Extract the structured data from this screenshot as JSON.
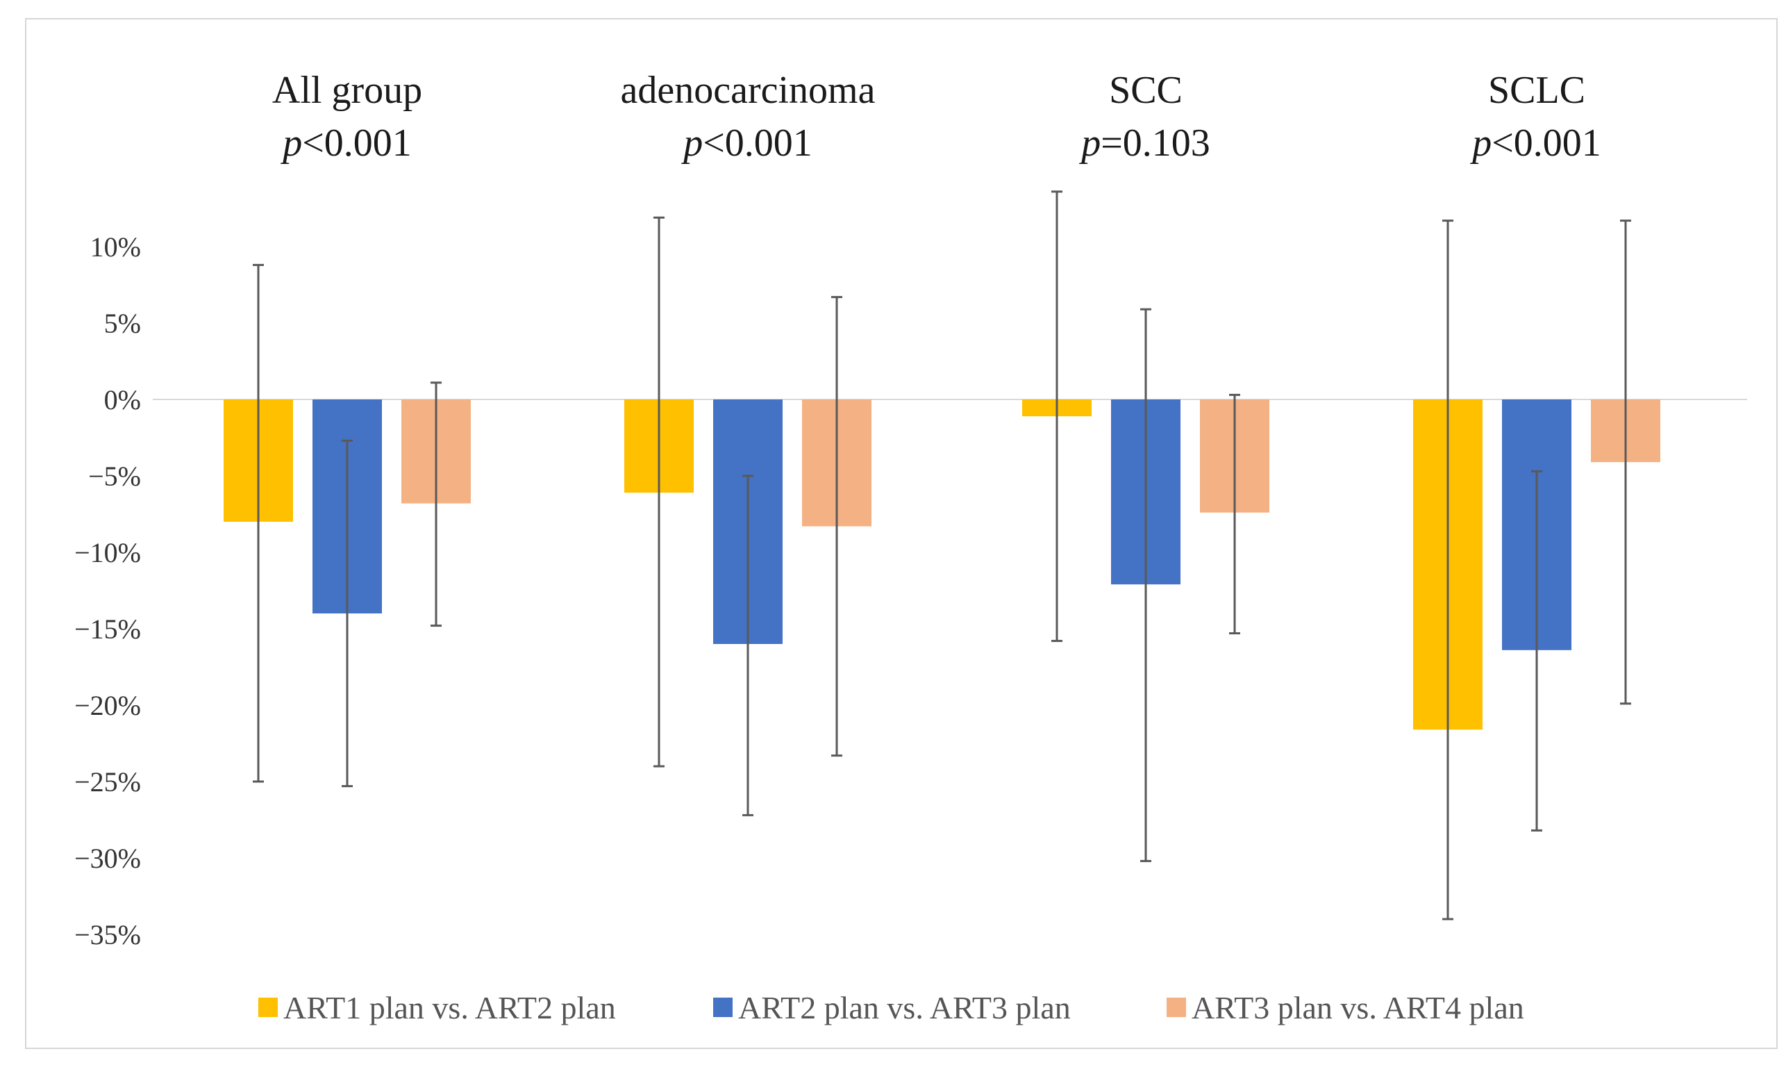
{
  "chart_data": {
    "type": "bar",
    "title": "",
    "xlabel": "",
    "ylabel": "",
    "ylim": [
      -35,
      10
    ],
    "y_ticks": [
      10,
      5,
      0,
      -5,
      -10,
      -15,
      -20,
      -25,
      -30,
      -35
    ],
    "y_tick_labels": [
      "10%",
      "5%",
      "0%",
      "−5%",
      "−10%",
      "−15%",
      "−20%",
      "−25%",
      "−30%",
      "−35%"
    ],
    "categories": [
      "All group",
      "adenocarcinoma",
      "SCC",
      "SCLC"
    ],
    "p_values": [
      {
        "prefix": "p",
        "rest": "<0.001"
      },
      {
        "prefix": "p",
        "rest": "<0.001"
      },
      {
        "prefix": "p",
        "rest": "=0.103"
      },
      {
        "prefix": "p",
        "rest": "<0.001"
      }
    ],
    "series": [
      {
        "name": "ART1 plan vs. ART2 plan",
        "color": "#FFC000",
        "values": [
          -8.0,
          -6.1,
          -1.1,
          -21.6
        ],
        "err_upper": [
          8.8,
          11.9,
          13.6,
          11.7
        ],
        "err_lower": [
          -25.0,
          -24.0,
          -15.8,
          -34.0
        ]
      },
      {
        "name": "ART2 plan vs. ART3 plan",
        "color": "#4472C4",
        "values": [
          -14.0,
          -16.0,
          -12.1,
          -16.4
        ],
        "err_upper": [
          -2.7,
          -5.0,
          5.9,
          -4.7
        ],
        "err_lower": [
          -25.3,
          -27.2,
          -30.2,
          -28.2
        ]
      },
      {
        "name": "ART3 plan vs. ART4 plan",
        "color": "#F4B183",
        "values": [
          -6.8,
          -8.3,
          -7.4,
          -4.1
        ],
        "err_upper": [
          1.1,
          6.7,
          0.3,
          11.7
        ],
        "err_lower": [
          -14.8,
          -23.3,
          -15.3,
          -19.9
        ]
      }
    ],
    "legend_position": "bottom",
    "grid": false
  }
}
